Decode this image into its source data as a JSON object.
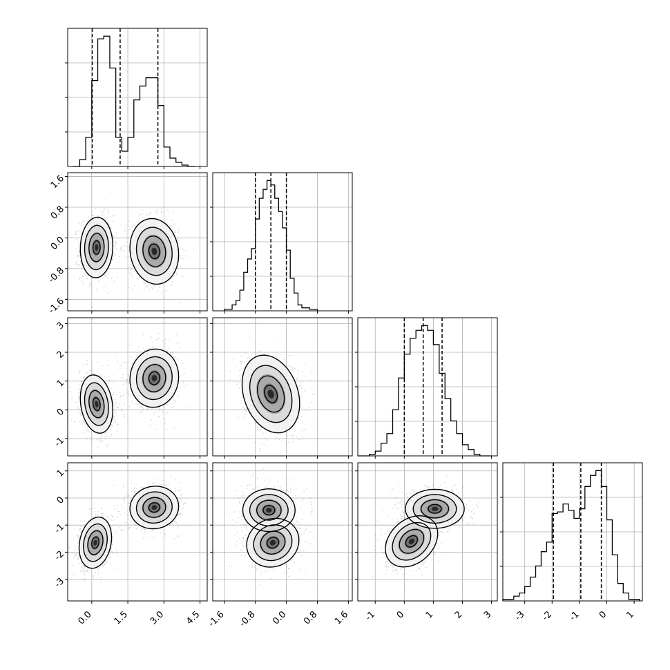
{
  "chart_data": {
    "type": "corner",
    "grid": true,
    "parameters": [
      {
        "range": [
          -1.0,
          4.8
        ],
        "ticks": [
          0.0,
          1.5,
          3.0,
          4.5
        ],
        "tick_labels": [
          "0.0",
          "1.5",
          "3.0",
          "4.5"
        ],
        "quantiles": [
          0.02,
          1.18,
          2.75
        ],
        "hist_bins": [
          -0.8,
          -0.5,
          -0.25,
          0,
          0.25,
          0.5,
          0.75,
          1.0,
          1.25,
          1.5,
          1.75,
          2.0,
          2.25,
          2.5,
          2.75,
          3.0,
          3.25,
          3.5,
          3.75,
          4.0,
          4.3
        ],
        "hist_counts": [
          0.0,
          0.05,
          0.21,
          0.62,
          0.92,
          0.94,
          0.71,
          0.21,
          0.11,
          0.21,
          0.48,
          0.58,
          0.64,
          0.64,
          0.44,
          0.14,
          0.06,
          0.03,
          0.01,
          0.0
        ]
      },
      {
        "range": [
          -1.9,
          1.7
        ],
        "ticks": [
          -1.6,
          -0.8,
          0.0,
          0.8,
          1.6
        ],
        "tick_labels": [
          "-1.6",
          "-0.8",
          "0.0",
          "0.8",
          "1.6"
        ],
        "quantiles": [
          -0.8,
          -0.4,
          0.0
        ],
        "hist_bins": [
          -1.6,
          -1.4,
          -1.3,
          -1.2,
          -1.1,
          -1.0,
          -0.9,
          -0.8,
          -0.7,
          -0.6,
          -0.5,
          -0.4,
          -0.3,
          -0.2,
          -0.1,
          0.0,
          0.1,
          0.2,
          0.3,
          0.4,
          0.6,
          0.8
        ],
        "hist_counts": [
          0.01,
          0.04,
          0.07,
          0.14,
          0.26,
          0.35,
          0.42,
          0.62,
          0.76,
          0.82,
          0.88,
          0.85,
          0.76,
          0.67,
          0.56,
          0.41,
          0.22,
          0.12,
          0.04,
          0.02,
          0.01
        ]
      },
      {
        "range": [
          -1.6,
          3.2
        ],
        "ticks": [
          -1,
          0,
          1,
          2,
          3
        ],
        "tick_labels": [
          "-1",
          "0",
          "1",
          "2",
          "3"
        ],
        "quantiles": [
          0.0,
          0.65,
          1.3
        ],
        "hist_bins": [
          -1.6,
          -1.2,
          -1.0,
          -0.8,
          -0.6,
          -0.4,
          -0.2,
          0.0,
          0.2,
          0.4,
          0.6,
          0.8,
          1.0,
          1.2,
          1.4,
          1.6,
          1.8,
          2.0,
          2.2,
          2.4,
          2.6,
          3.0
        ],
        "hist_counts": [
          0.0,
          0.01,
          0.03,
          0.08,
          0.14,
          0.29,
          0.49,
          0.64,
          0.74,
          0.79,
          0.82,
          0.79,
          0.7,
          0.52,
          0.36,
          0.22,
          0.14,
          0.07,
          0.04,
          0.01,
          0.0
        ]
      },
      {
        "range": [
          -3.8,
          1.3
        ],
        "ticks": [
          -3,
          -2,
          -1,
          0,
          1
        ],
        "tick_labels": [
          "-3",
          "-2",
          "-1",
          "0",
          "1"
        ],
        "quantiles": [
          -1.95,
          -0.95,
          -0.2
        ],
        "hist_bins": [
          -3.8,
          -3.4,
          -3.2,
          -3.0,
          -2.8,
          -2.6,
          -2.4,
          -2.2,
          -2.0,
          -1.8,
          -1.6,
          -1.4,
          -1.2,
          -1.0,
          -0.8,
          -0.6,
          -0.4,
          -0.2,
          0.0,
          0.2,
          0.4,
          0.6,
          0.8,
          1.2
        ],
        "hist_counts": [
          0.01,
          0.03,
          0.05,
          0.09,
          0.15,
          0.22,
          0.31,
          0.37,
          0.55,
          0.56,
          0.61,
          0.57,
          0.52,
          0.58,
          0.72,
          0.79,
          0.82,
          0.72,
          0.51,
          0.29,
          0.11,
          0.05,
          0.01
        ]
      }
    ],
    "joint": {
      "1,0": {
        "blobs": [
          {
            "c": [
              0.2,
              -0.25
            ],
            "s": [
              0.3,
              0.35
            ],
            "r": 0.05,
            "w": 1.0
          },
          {
            "c": [
              2.6,
              -0.35
            ],
            "s": [
              0.45,
              0.38
            ],
            "r": -0.1,
            "w": 0.9
          }
        ]
      },
      "2,0": {
        "blobs": [
          {
            "c": [
              0.2,
              0.2
            ],
            "s": [
              0.3,
              0.45
            ],
            "r": -0.2,
            "w": 1.0
          },
          {
            "c": [
              2.6,
              1.1
            ],
            "s": [
              0.45,
              0.45
            ],
            "r": 0.05,
            "w": 0.9
          }
        ]
      },
      "3,0": {
        "blobs": [
          {
            "c": [
              0.15,
              -1.65
            ],
            "s": [
              0.3,
              0.42
            ],
            "r": 0.2,
            "w": 1.0
          },
          {
            "c": [
              2.6,
              -0.35
            ],
            "s": [
              0.45,
              0.35
            ],
            "r": 0.05,
            "w": 0.9
          }
        ]
      },
      "2,1": {
        "blobs": [
          {
            "c": [
              -0.4,
              0.55
            ],
            "s": [
              0.33,
              0.6
            ],
            "r": -0.25,
            "w": 1.0
          }
        ]
      },
      "3,1": {
        "blobs": [
          {
            "c": [
              -0.45,
              -0.45
            ],
            "s": [
              0.3,
              0.35
            ],
            "r": 0.0,
            "w": 1.0
          },
          {
            "c": [
              -0.35,
              -1.65
            ],
            "s": [
              0.3,
              0.4
            ],
            "r": 0.1,
            "w": 0.95
          }
        ]
      },
      "3,2": {
        "blobs": [
          {
            "c": [
              0.25,
              -1.6
            ],
            "s": [
              0.4,
              0.42
            ],
            "r": 0.3,
            "w": 1.0
          },
          {
            "c": [
              1.05,
              -0.4
            ],
            "s": [
              0.45,
              0.32
            ],
            "r": 0.0,
            "w": 0.95
          }
        ]
      }
    }
  }
}
